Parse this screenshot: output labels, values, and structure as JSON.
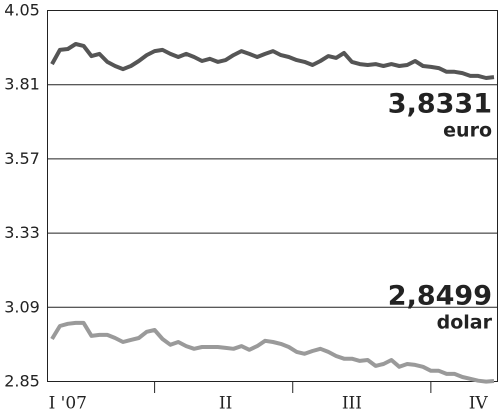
{
  "chart_data": {
    "type": "line",
    "categories": [
      null,
      null,
      "I '07",
      null,
      null,
      null,
      null,
      null,
      null,
      null,
      null,
      null,
      null,
      null,
      null,
      null,
      null,
      null,
      null,
      null,
      null,
      null,
      "II",
      null,
      null,
      null,
      null,
      null,
      null,
      null,
      null,
      null,
      null,
      null,
      null,
      null,
      null,
      null,
      "III",
      null,
      null,
      null,
      null,
      null,
      null,
      null,
      null,
      null,
      null,
      null,
      null,
      null,
      null,
      null,
      "IV",
      null,
      null
    ],
    "series": [
      {
        "name": "euro",
        "color": "#555555",
        "values": [
          3.875,
          3.921,
          3.924,
          3.94,
          3.934,
          3.901,
          3.908,
          3.882,
          3.869,
          3.859,
          3.869,
          3.885,
          3.904,
          3.917,
          3.921,
          3.908,
          3.898,
          3.908,
          3.898,
          3.885,
          3.892,
          3.882,
          3.888,
          3.904,
          3.917,
          3.908,
          3.898,
          3.908,
          3.917,
          3.904,
          3.898,
          3.888,
          3.882,
          3.872,
          3.885,
          3.901,
          3.895,
          3.911,
          3.882,
          3.875,
          3.872,
          3.875,
          3.869,
          3.875,
          3.869,
          3.872,
          3.885,
          3.869,
          3.866,
          3.862,
          3.85,
          3.85,
          3.846,
          3.837,
          3.837,
          3.83,
          3.8331
        ],
        "value_labels": [
          null,
          null,
          null,
          null,
          null,
          null,
          null,
          null,
          null,
          null,
          null,
          null,
          null,
          null,
          null,
          null,
          null,
          null,
          null,
          null,
          null,
          null,
          null,
          null,
          null,
          null,
          null,
          null,
          null,
          null,
          null,
          null,
          null,
          null,
          null,
          null,
          null,
          null,
          null,
          null,
          null,
          null,
          null,
          null,
          null,
          null,
          null,
          null,
          null,
          null,
          null,
          null,
          null,
          null,
          null,
          null,
          "3,8331"
        ]
      },
      {
        "name": "dolar",
        "color": "#9a9a9a",
        "values": [
          2.986,
          3.028,
          3.035,
          3.038,
          3.038,
          2.996,
          2.999,
          2.999,
          2.989,
          2.976,
          2.983,
          2.989,
          3.009,
          3.015,
          2.986,
          2.967,
          2.976,
          2.963,
          2.954,
          2.96,
          2.96,
          2.96,
          2.957,
          2.954,
          2.963,
          2.951,
          2.963,
          2.98,
          2.976,
          2.97,
          2.96,
          2.944,
          2.938,
          2.947,
          2.954,
          2.944,
          2.931,
          2.922,
          2.922,
          2.915,
          2.918,
          2.899,
          2.905,
          2.918,
          2.896,
          2.905,
          2.902,
          2.896,
          2.883,
          2.883,
          2.873,
          2.873,
          2.863,
          2.857,
          2.851,
          2.848,
          2.8499
        ],
        "value_labels": [
          null,
          null,
          null,
          null,
          null,
          null,
          null,
          null,
          null,
          null,
          null,
          null,
          null,
          null,
          null,
          null,
          null,
          null,
          null,
          null,
          null,
          null,
          null,
          null,
          null,
          null,
          null,
          null,
          null,
          null,
          null,
          null,
          null,
          null,
          null,
          null,
          null,
          null,
          null,
          null,
          null,
          null,
          null,
          null,
          null,
          null,
          null,
          null,
          null,
          null,
          null,
          null,
          null,
          null,
          null,
          null,
          "2,8499"
        ]
      }
    ],
    "ylim": [
      2.85,
      4.05
    ],
    "yticks": [
      2.85,
      3.09,
      3.33,
      3.57,
      3.81,
      4.05
    ],
    "grid": true
  }
}
